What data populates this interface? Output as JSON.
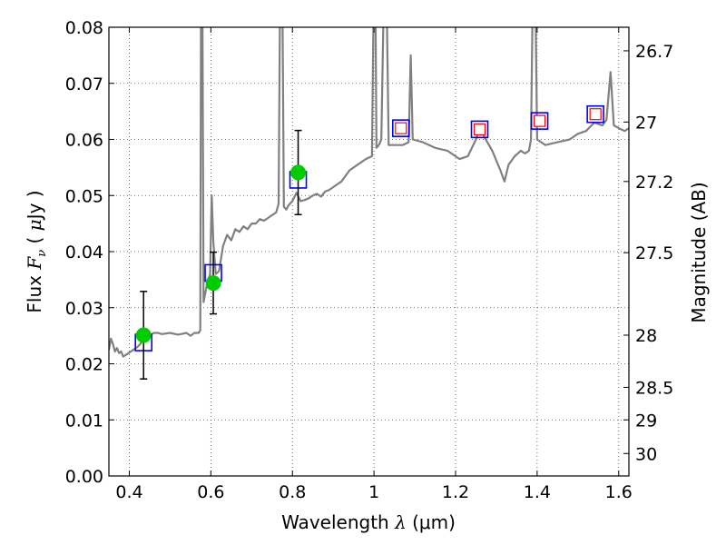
{
  "chart_data": {
    "type": "scatter",
    "title": "",
    "xlabel": "Wavelength",
    "xlabel_symbol": "λ",
    "xlabel_unit": "(μm)",
    "ylabel": "Flux",
    "ylabel_symbol": "F",
    "ylabel_symbol_sub": "ν",
    "ylabel_unit_open": "(",
    "ylabel_unit_mu": "μ",
    "ylabel_unit_rest": "Jy )",
    "y2label": "Magnitude (AB)",
    "xlim": [
      0.35,
      1.625
    ],
    "ylim": [
      0.0,
      0.08
    ],
    "grid": true,
    "x_ticks": [
      0.4,
      0.6,
      0.8,
      1.0,
      1.2,
      1.4,
      1.6
    ],
    "x_tick_labels": [
      "0.4",
      "0.6",
      "0.8",
      "1",
      "1.2",
      "1.4",
      "1.6"
    ],
    "y_ticks": [
      0.0,
      0.01,
      0.02,
      0.03,
      0.04,
      0.05,
      0.06,
      0.07,
      0.08
    ],
    "y_tick_labels": [
      "0.00",
      "0.01",
      "0.02",
      "0.03",
      "0.04",
      "0.05",
      "0.06",
      "0.07",
      "0.08"
    ],
    "y2_ticks": [
      {
        "label": "26.7",
        "flux": 0.0758
      },
      {
        "label": "27",
        "flux": 0.0631
      },
      {
        "label": "27.2",
        "flux": 0.0525
      },
      {
        "label": "27.5",
        "flux": 0.0398
      },
      {
        "label": "28",
        "flux": 0.0251
      },
      {
        "label": "28.5",
        "flux": 0.0158
      },
      {
        "label": "29",
        "flux": 0.01
      },
      {
        "label": "30",
        "flux": 0.004
      }
    ],
    "colors": {
      "spectrum": "#808080",
      "observed": "#00cc00",
      "model_box": "#0000ff",
      "model_inner": "#ff0000",
      "errorbar": "#000000",
      "grid": "#000000"
    },
    "series": [
      {
        "kind": "spectrum",
        "points": [
          [
            0.35,
            0.0225
          ],
          [
            0.355,
            0.0245
          ],
          [
            0.36,
            0.0235
          ],
          [
            0.365,
            0.0222
          ],
          [
            0.37,
            0.0228
          ],
          [
            0.375,
            0.0219
          ],
          [
            0.38,
            0.0222
          ],
          [
            0.385,
            0.0213
          ],
          [
            0.39,
            0.0215
          ],
          [
            0.4,
            0.022
          ],
          [
            0.41,
            0.0225
          ],
          [
            0.42,
            0.023
          ],
          [
            0.43,
            0.0238
          ],
          [
            0.44,
            0.0245
          ],
          [
            0.45,
            0.025
          ],
          [
            0.46,
            0.0255
          ],
          [
            0.47,
            0.0255
          ],
          [
            0.48,
            0.0253
          ],
          [
            0.5,
            0.0255
          ],
          [
            0.52,
            0.0252
          ],
          [
            0.54,
            0.0255
          ],
          [
            0.55,
            0.025
          ],
          [
            0.56,
            0.0255
          ],
          [
            0.57,
            0.0255
          ],
          [
            0.574,
            0.026
          ],
          [
            0.576,
            0.09
          ],
          [
            0.579,
            0.09
          ],
          [
            0.582,
            0.031
          ],
          [
            0.59,
            0.034
          ],
          [
            0.598,
            0.036
          ],
          [
            0.602,
            0.05
          ],
          [
            0.606,
            0.042
          ],
          [
            0.612,
            0.036
          ],
          [
            0.62,
            0.0365
          ],
          [
            0.63,
            0.041
          ],
          [
            0.64,
            0.043
          ],
          [
            0.65,
            0.042
          ],
          [
            0.66,
            0.044
          ],
          [
            0.67,
            0.0435
          ],
          [
            0.68,
            0.0445
          ],
          [
            0.69,
            0.044
          ],
          [
            0.7,
            0.045
          ],
          [
            0.71,
            0.045
          ],
          [
            0.72,
            0.0458
          ],
          [
            0.73,
            0.0455
          ],
          [
            0.74,
            0.046
          ],
          [
            0.75,
            0.0465
          ],
          [
            0.76,
            0.047
          ],
          [
            0.766,
            0.0485
          ],
          [
            0.77,
            0.09
          ],
          [
            0.775,
            0.09
          ],
          [
            0.779,
            0.048
          ],
          [
            0.785,
            0.0475
          ],
          [
            0.79,
            0.0482
          ],
          [
            0.8,
            0.049
          ],
          [
            0.81,
            0.0505
          ],
          [
            0.82,
            0.049
          ],
          [
            0.83,
            0.0492
          ],
          [
            0.84,
            0.0495
          ],
          [
            0.85,
            0.05
          ],
          [
            0.86,
            0.0503
          ],
          [
            0.87,
            0.0498
          ],
          [
            0.88,
            0.0507
          ],
          [
            0.89,
            0.051
          ],
          [
            0.9,
            0.0515
          ],
          [
            0.92,
            0.0525
          ],
          [
            0.94,
            0.0545
          ],
          [
            0.96,
            0.0555
          ],
          [
            0.98,
            0.0565
          ],
          [
            0.995,
            0.057
          ],
          [
            1.0,
            0.09
          ],
          [
            1.003,
            0.09
          ],
          [
            1.006,
            0.0585
          ],
          [
            1.012,
            0.059
          ],
          [
            1.018,
            0.06
          ],
          [
            1.025,
            0.09
          ],
          [
            1.03,
            0.09
          ],
          [
            1.036,
            0.059
          ],
          [
            1.05,
            0.059
          ],
          [
            1.07,
            0.059
          ],
          [
            1.085,
            0.0595
          ],
          [
            1.09,
            0.075
          ],
          [
            1.095,
            0.06
          ],
          [
            1.12,
            0.0595
          ],
          [
            1.15,
            0.0585
          ],
          [
            1.18,
            0.058
          ],
          [
            1.21,
            0.0565
          ],
          [
            1.23,
            0.057
          ],
          [
            1.25,
            0.06
          ],
          [
            1.26,
            0.062
          ],
          [
            1.27,
            0.0605
          ],
          [
            1.29,
            0.058
          ],
          [
            1.31,
            0.0545
          ],
          [
            1.32,
            0.0525
          ],
          [
            1.33,
            0.0555
          ],
          [
            1.345,
            0.057
          ],
          [
            1.36,
            0.058
          ],
          [
            1.37,
            0.0575
          ],
          [
            1.38,
            0.058
          ],
          [
            1.385,
            0.06
          ],
          [
            1.39,
            0.09
          ],
          [
            1.395,
            0.09
          ],
          [
            1.4,
            0.06
          ],
          [
            1.42,
            0.059
          ],
          [
            1.45,
            0.0595
          ],
          [
            1.48,
            0.06
          ],
          [
            1.5,
            0.061
          ],
          [
            1.52,
            0.0615
          ],
          [
            1.54,
            0.063
          ],
          [
            1.56,
            0.0625
          ],
          [
            1.57,
            0.0635
          ],
          [
            1.58,
            0.072
          ],
          [
            1.588,
            0.0625
          ],
          [
            1.6,
            0.062
          ],
          [
            1.615,
            0.0615
          ],
          [
            1.625,
            0.062
          ]
        ]
      },
      {
        "kind": "observed",
        "points": [
          {
            "x": 0.435,
            "y": 0.0251,
            "err": 0.0078
          },
          {
            "x": 0.606,
            "y": 0.0344,
            "err": 0.0055
          },
          {
            "x": 0.814,
            "y": 0.0541,
            "err": 0.0075
          }
        ]
      },
      {
        "kind": "model_photometry",
        "points": [
          {
            "x": 0.435,
            "y": 0.0238
          },
          {
            "x": 0.606,
            "y": 0.0362
          },
          {
            "x": 0.814,
            "y": 0.0528
          },
          {
            "x": 1.066,
            "y": 0.062
          },
          {
            "x": 1.259,
            "y": 0.0618
          },
          {
            "x": 1.406,
            "y": 0.0633
          },
          {
            "x": 1.543,
            "y": 0.0645
          }
        ]
      },
      {
        "kind": "model_inner",
        "points": [
          {
            "x": 1.066,
            "y": 0.062
          },
          {
            "x": 1.259,
            "y": 0.0618
          },
          {
            "x": 1.406,
            "y": 0.0633
          },
          {
            "x": 1.543,
            "y": 0.0645
          }
        ]
      }
    ]
  }
}
